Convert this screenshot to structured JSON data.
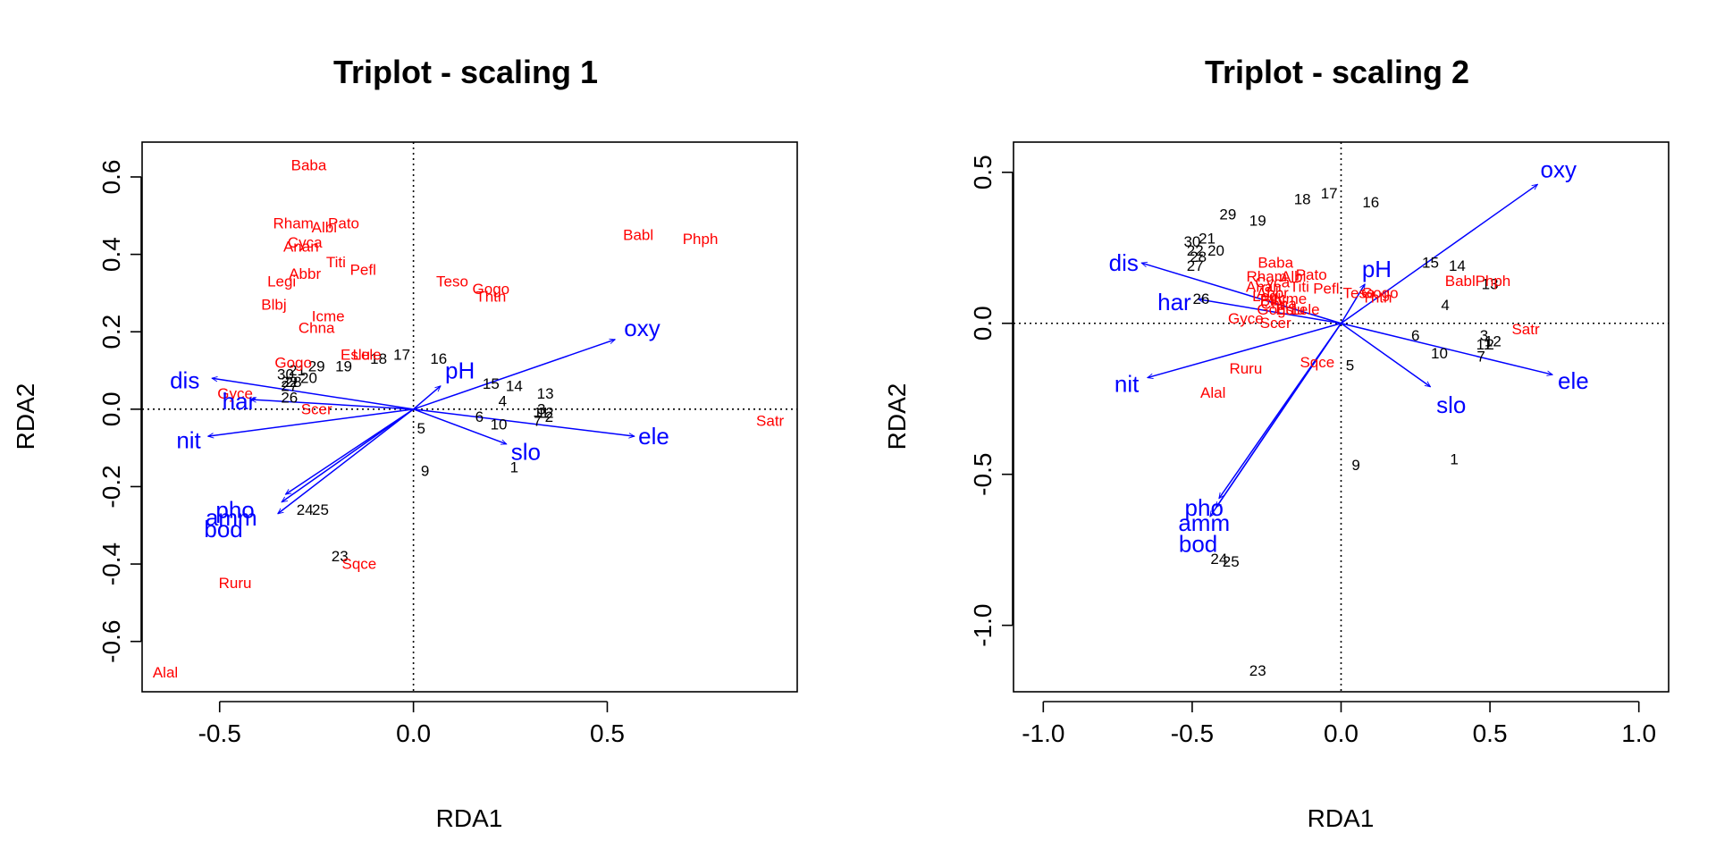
{
  "colors": {
    "sites": "#000000",
    "species": "#ff0000",
    "env": "#0000ff",
    "axis": "#000000"
  },
  "chart_data": [
    {
      "type": "scatter",
      "title": "Triplot - scaling 1",
      "xlabel": "RDA1",
      "ylabel": "RDA2",
      "xlim": [
        -0.7,
        0.99
      ],
      "ylim": [
        -0.73,
        0.69
      ],
      "xticks": [
        -0.5,
        0.0,
        0.5
      ],
      "xtick_labels": [
        "-0.5",
        "0.0",
        "0.5"
      ],
      "yticks": [
        -0.6,
        -0.4,
        -0.2,
        0.0,
        0.2,
        0.4,
        0.6
      ],
      "ytick_labels": [
        "-0.6",
        "-0.4",
        "-0.2",
        "0.0",
        "0.2",
        "0.4",
        "0.6"
      ],
      "sites": [
        {
          "label": "1",
          "x": 0.26,
          "y": -0.15
        },
        {
          "label": "2",
          "x": 0.35,
          "y": -0.02
        },
        {
          "label": "3",
          "x": 0.33,
          "y": 0.0
        },
        {
          "label": "4",
          "x": 0.23,
          "y": 0.02
        },
        {
          "label": "5",
          "x": 0.02,
          "y": -0.05
        },
        {
          "label": "6",
          "x": 0.17,
          "y": -0.02
        },
        {
          "label": "7",
          "x": 0.32,
          "y": -0.03
        },
        {
          "label": "9",
          "x": 0.03,
          "y": -0.16
        },
        {
          "label": "10",
          "x": 0.22,
          "y": -0.04
        },
        {
          "label": "11",
          "x": 0.33,
          "y": -0.01
        },
        {
          "label": "12",
          "x": 0.34,
          "y": -0.01
        },
        {
          "label": "13",
          "x": 0.34,
          "y": 0.04
        },
        {
          "label": "14",
          "x": 0.26,
          "y": 0.06
        },
        {
          "label": "15",
          "x": 0.2,
          "y": 0.065
        },
        {
          "label": "16",
          "x": 0.065,
          "y": 0.13
        },
        {
          "label": "17",
          "x": -0.03,
          "y": 0.14
        },
        {
          "label": "18",
          "x": -0.09,
          "y": 0.13
        },
        {
          "label": "19",
          "x": -0.18,
          "y": 0.11
        },
        {
          "label": "20",
          "x": -0.27,
          "y": 0.08
        },
        {
          "label": "21",
          "x": -0.3,
          "y": 0.1
        },
        {
          "label": "22",
          "x": -0.32,
          "y": 0.07
        },
        {
          "label": "23",
          "x": -0.19,
          "y": -0.38
        },
        {
          "label": "24",
          "x": -0.28,
          "y": -0.26
        },
        {
          "label": "25",
          "x": -0.24,
          "y": -0.26
        },
        {
          "label": "26",
          "x": -0.32,
          "y": 0.03
        },
        {
          "label": "27",
          "x": -0.32,
          "y": 0.06
        },
        {
          "label": "28",
          "x": -0.31,
          "y": 0.07
        },
        {
          "label": "29",
          "x": -0.25,
          "y": 0.11
        },
        {
          "label": "30",
          "x": -0.33,
          "y": 0.09
        }
      ],
      "species": [
        {
          "label": "Baba",
          "x": -0.27,
          "y": 0.63
        },
        {
          "label": "Rham",
          "x": -0.31,
          "y": 0.48
        },
        {
          "label": "Albi",
          "x": -0.23,
          "y": 0.47
        },
        {
          "label": "Pato",
          "x": -0.18,
          "y": 0.48
        },
        {
          "label": "Cyca",
          "x": -0.28,
          "y": 0.43
        },
        {
          "label": "Anan",
          "x": -0.29,
          "y": 0.42
        },
        {
          "label": "Titi",
          "x": -0.2,
          "y": 0.38
        },
        {
          "label": "Pefl",
          "x": -0.13,
          "y": 0.36
        },
        {
          "label": "Abbr",
          "x": -0.28,
          "y": 0.35
        },
        {
          "label": "Legi",
          "x": -0.34,
          "y": 0.33
        },
        {
          "label": "Blbj",
          "x": -0.36,
          "y": 0.27
        },
        {
          "label": "Icme",
          "x": -0.22,
          "y": 0.24
        },
        {
          "label": "Chna",
          "x": -0.25,
          "y": 0.21
        },
        {
          "label": "Gogo",
          "x": -0.31,
          "y": 0.12
        },
        {
          "label": "Eslu",
          "x": -0.15,
          "y": 0.14
        },
        {
          "label": "Lele",
          "x": -0.12,
          "y": 0.14
        },
        {
          "label": "Gyce",
          "x": -0.46,
          "y": 0.04
        },
        {
          "label": "Scer",
          "x": -0.25,
          "y": 0.0
        },
        {
          "label": "Sqce",
          "x": -0.14,
          "y": -0.4
        },
        {
          "label": "Ruru",
          "x": -0.46,
          "y": -0.45
        },
        {
          "label": "Alal",
          "x": -0.64,
          "y": -0.68
        },
        {
          "label": "Teso",
          "x": 0.1,
          "y": 0.33
        },
        {
          "label": "Gogo",
          "x": 0.2,
          "y": 0.31
        },
        {
          "label": "Thth",
          "x": 0.2,
          "y": 0.29
        },
        {
          "label": "Babl",
          "x": 0.58,
          "y": 0.45
        },
        {
          "label": "Phph",
          "x": 0.74,
          "y": 0.44
        },
        {
          "label": "Satr",
          "x": 0.92,
          "y": -0.03
        }
      ],
      "env_vectors": [
        {
          "label": "dis",
          "x": -0.52,
          "y": 0.08,
          "lx": -0.59,
          "ly": 0.075
        },
        {
          "label": "har",
          "x": -0.42,
          "y": 0.025,
          "lx": -0.45,
          "ly": 0.02
        },
        {
          "label": "nit",
          "x": -0.53,
          "y": -0.07,
          "lx": -0.58,
          "ly": -0.08
        },
        {
          "label": "pho",
          "x": -0.33,
          "y": -0.22,
          "lx": -0.46,
          "ly": -0.26
        },
        {
          "label": "amm",
          "x": -0.34,
          "y": -0.24,
          "lx": -0.47,
          "ly": -0.28
        },
        {
          "label": "bod",
          "x": -0.35,
          "y": -0.27,
          "lx": -0.49,
          "ly": -0.31
        },
        {
          "label": "pH",
          "x": 0.07,
          "y": 0.06,
          "lx": 0.12,
          "ly": 0.1
        },
        {
          "label": "oxy",
          "x": 0.52,
          "y": 0.18,
          "lx": 0.59,
          "ly": 0.21
        },
        {
          "label": "slo",
          "x": 0.24,
          "y": -0.09,
          "lx": 0.29,
          "ly": -0.11
        },
        {
          "label": "ele",
          "x": 0.57,
          "y": -0.07,
          "lx": 0.62,
          "ly": -0.07
        }
      ]
    },
    {
      "type": "scatter",
      "title": "Triplot - scaling 2",
      "xlabel": "RDA1",
      "ylabel": "RDA2",
      "xlim": [
        -1.1,
        1.1
      ],
      "ylim": [
        -1.22,
        0.6
      ],
      "xticks": [
        -1.0,
        -0.5,
        0.0,
        0.5,
        1.0
      ],
      "xtick_labels": [
        "-1.0",
        "-0.5",
        "0.0",
        "0.5",
        "1.0"
      ],
      "yticks": [
        -1.0,
        -0.5,
        0.0,
        0.5
      ],
      "ytick_labels": [
        "-1.0",
        "-0.5",
        "0.0",
        "0.5"
      ],
      "sites": [
        {
          "label": "1",
          "x": 0.38,
          "y": -0.45
        },
        {
          "label": "2",
          "x": 0.5,
          "y": -0.07
        },
        {
          "label": "3",
          "x": 0.48,
          "y": -0.04
        },
        {
          "label": "4",
          "x": 0.35,
          "y": 0.06
        },
        {
          "label": "5",
          "x": 0.03,
          "y": -0.14
        },
        {
          "label": "6",
          "x": 0.25,
          "y": -0.04
        },
        {
          "label": "7",
          "x": 0.47,
          "y": -0.11
        },
        {
          "label": "9",
          "x": 0.05,
          "y": -0.47
        },
        {
          "label": "10",
          "x": 0.33,
          "y": -0.1
        },
        {
          "label": "11",
          "x": 0.48,
          "y": -0.07
        },
        {
          "label": "12",
          "x": 0.51,
          "y": -0.06
        },
        {
          "label": "13",
          "x": 0.5,
          "y": 0.13
        },
        {
          "label": "14",
          "x": 0.39,
          "y": 0.19
        },
        {
          "label": "15",
          "x": 0.3,
          "y": 0.2
        },
        {
          "label": "16",
          "x": 0.1,
          "y": 0.4
        },
        {
          "label": "17",
          "x": -0.04,
          "y": 0.43
        },
        {
          "label": "18",
          "x": -0.13,
          "y": 0.41
        },
        {
          "label": "19",
          "x": -0.28,
          "y": 0.34
        },
        {
          "label": "20",
          "x": -0.42,
          "y": 0.24
        },
        {
          "label": "21",
          "x": -0.45,
          "y": 0.28
        },
        {
          "label": "22",
          "x": -0.49,
          "y": 0.24
        },
        {
          "label": "23",
          "x": -0.28,
          "y": -1.15
        },
        {
          "label": "24",
          "x": -0.41,
          "y": -0.78
        },
        {
          "label": "25",
          "x": -0.37,
          "y": -0.79
        },
        {
          "label": "26",
          "x": -0.47,
          "y": 0.08
        },
        {
          "label": "27",
          "x": -0.49,
          "y": 0.19
        },
        {
          "label": "28",
          "x": -0.48,
          "y": 0.22
        },
        {
          "label": "29",
          "x": -0.38,
          "y": 0.36
        },
        {
          "label": "30",
          "x": -0.5,
          "y": 0.27
        }
      ],
      "species": [
        {
          "label": "Baba",
          "x": -0.22,
          "y": 0.2
        },
        {
          "label": "Rham",
          "x": -0.25,
          "y": 0.155
        },
        {
          "label": "Albi",
          "x": -0.16,
          "y": 0.155
        },
        {
          "label": "Pato",
          "x": -0.1,
          "y": 0.16
        },
        {
          "label": "Cyca",
          "x": -0.23,
          "y": 0.135
        },
        {
          "label": "Anan",
          "x": -0.26,
          "y": 0.12
        },
        {
          "label": "Titi",
          "x": -0.14,
          "y": 0.12
        },
        {
          "label": "Pefl",
          "x": -0.05,
          "y": 0.115
        },
        {
          "label": "Abbr",
          "x": -0.23,
          "y": 0.1
        },
        {
          "label": "Legi",
          "x": -0.25,
          "y": 0.09
        },
        {
          "label": "Blbj",
          "x": -0.23,
          "y": 0.075
        },
        {
          "label": "Icme",
          "x": -0.17,
          "y": 0.08
        },
        {
          "label": "Chna",
          "x": -0.21,
          "y": 0.065
        },
        {
          "label": "Gogo",
          "x": -0.22,
          "y": 0.045
        },
        {
          "label": "Eslu",
          "x": -0.17,
          "y": 0.045
        },
        {
          "label": "Lele",
          "x": -0.12,
          "y": 0.045
        },
        {
          "label": "Gyce",
          "x": -0.32,
          "y": 0.015
        },
        {
          "label": "Scer",
          "x": -0.22,
          "y": 0.0
        },
        {
          "label": "Sqce",
          "x": -0.08,
          "y": -0.13
        },
        {
          "label": "Ruru",
          "x": -0.32,
          "y": -0.15
        },
        {
          "label": "Alal",
          "x": -0.43,
          "y": -0.23
        },
        {
          "label": "Teso",
          "x": 0.06,
          "y": 0.1
        },
        {
          "label": "Gogo",
          "x": 0.13,
          "y": 0.1
        },
        {
          "label": "Thth",
          "x": 0.12,
          "y": 0.085
        },
        {
          "label": "Babl",
          "x": 0.4,
          "y": 0.14
        },
        {
          "label": "Phph",
          "x": 0.51,
          "y": 0.14
        },
        {
          "label": "Satr",
          "x": 0.62,
          "y": -0.02
        }
      ],
      "env_vectors": [
        {
          "label": "dis",
          "x": -0.67,
          "y": 0.2,
          "lx": -0.73,
          "ly": 0.2
        },
        {
          "label": "har",
          "x": -0.48,
          "y": 0.08,
          "lx": -0.56,
          "ly": 0.07
        },
        {
          "label": "nit",
          "x": -0.65,
          "y": -0.18,
          "lx": -0.72,
          "ly": -0.2
        },
        {
          "label": "pho",
          "x": -0.41,
          "y": -0.58,
          "lx": -0.46,
          "ly": -0.61
        },
        {
          "label": "amm",
          "x": -0.42,
          "y": -0.61,
          "lx": -0.46,
          "ly": -0.66
        },
        {
          "label": "bod",
          "x": -0.44,
          "y": -0.64,
          "lx": -0.48,
          "ly": -0.73
        },
        {
          "label": "pH",
          "x": 0.08,
          "y": 0.13,
          "lx": 0.12,
          "ly": 0.18
        },
        {
          "label": "oxy",
          "x": 0.66,
          "y": 0.46,
          "lx": 0.73,
          "ly": 0.51
        },
        {
          "label": "slo",
          "x": 0.3,
          "y": -0.21,
          "lx": 0.37,
          "ly": -0.27
        },
        {
          "label": "ele",
          "x": 0.71,
          "y": -0.17,
          "lx": 0.78,
          "ly": -0.19
        }
      ]
    }
  ]
}
